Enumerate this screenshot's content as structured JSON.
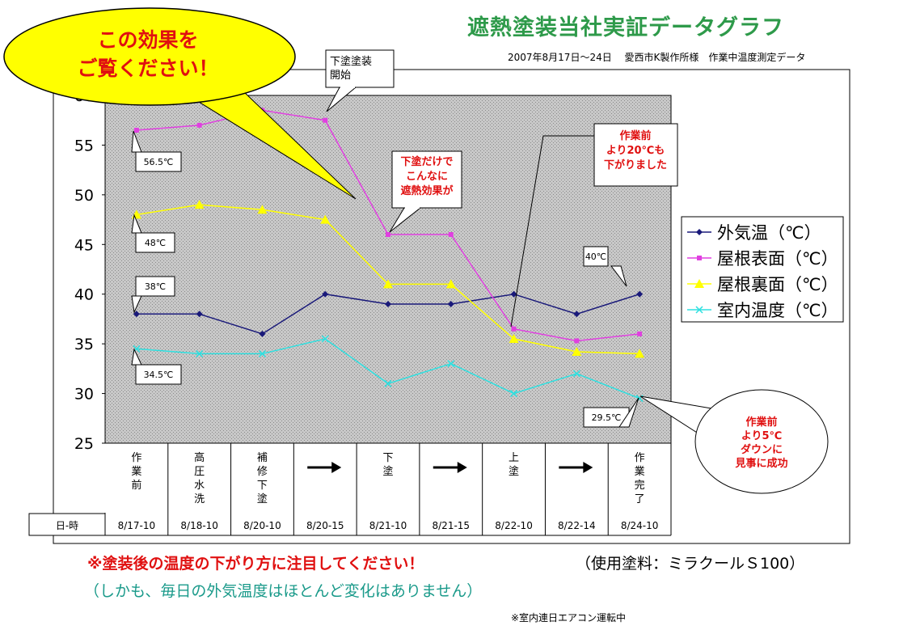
{
  "header": {
    "title": "遮熱塗装当社実証データグラフ",
    "subtitle": "2007年8月17日～24日　 愛西市K製作所様　作業中温度測定データ"
  },
  "callout": {
    "main": [
      "この効果を",
      "ご覧ください！"
    ],
    "shita_start": [
      "下塗塗装",
      "開始"
    ],
    "shita_effect": [
      "下塗だけで",
      "こんなに",
      "遮熱効果が"
    ],
    "drop20": [
      "作業前",
      "より20℃も",
      "下がりました"
    ],
    "drop5": [
      "作業前",
      "より5℃",
      "ダウンに",
      "見事に成功"
    ]
  },
  "footer": {
    "notice": "※塗装後の温度の下がり方に注目してください！",
    "paint": "（使用塗料：ミラクールＳ100）",
    "paren": "（しかも、毎日の外気温度はほとんど変化はありません）",
    "footnote": "※室内連日エアコン運転中"
  },
  "chart_data": {
    "type": "line",
    "x_axis_title": "日-時",
    "categories": [
      "8/17-10",
      "8/18-10",
      "8/20-10",
      "8/20-15",
      "8/21-10",
      "8/21-15",
      "8/22-10",
      "8/22-14",
      "8/24-10"
    ],
    "phase_labels": [
      "作\n業\n前",
      "高\n圧\n水\n洗",
      "補\n修\n下\n塗",
      "➡",
      "下\n塗",
      "➡",
      "上\n塗",
      "➡",
      "作\n業\n完\n了"
    ],
    "ylim": [
      25,
      60
    ],
    "yticks": [
      25,
      30,
      35,
      40,
      45,
      50,
      55,
      "60"
    ],
    "grid": false,
    "legend_position": "right",
    "series": [
      {
        "name": "外気温（℃）",
        "color": "#1a1a7a",
        "marker": "diamond",
        "values": [
          38,
          38,
          36,
          40,
          39,
          39,
          40,
          38,
          40
        ]
      },
      {
        "name": "屋根表面（℃）",
        "color": "#e040e0",
        "marker": "square",
        "values": [
          56.5,
          57,
          58.5,
          57.5,
          46,
          46,
          36.5,
          35.3,
          36
        ]
      },
      {
        "name": "屋根裏面（℃）",
        "color": "#ffff00",
        "marker": "triangle",
        "values": [
          48,
          49,
          48.5,
          47.5,
          41,
          41,
          35.5,
          34.2,
          34
        ]
      },
      {
        "name": "室内温度（℃）",
        "color": "#2ee0e0",
        "marker": "x",
        "values": [
          34.5,
          34,
          34,
          35.5,
          31,
          33,
          30,
          32,
          29.5
        ]
      }
    ],
    "data_labels": [
      "56.5℃",
      "48℃",
      "38℃",
      "34.5℃",
      "40℃",
      "29.5℃"
    ]
  },
  "colors": {
    "plot_bg": "#c0c0c0",
    "callout_yellow": "#ffff00",
    "callout_text_red": "#e01010"
  }
}
